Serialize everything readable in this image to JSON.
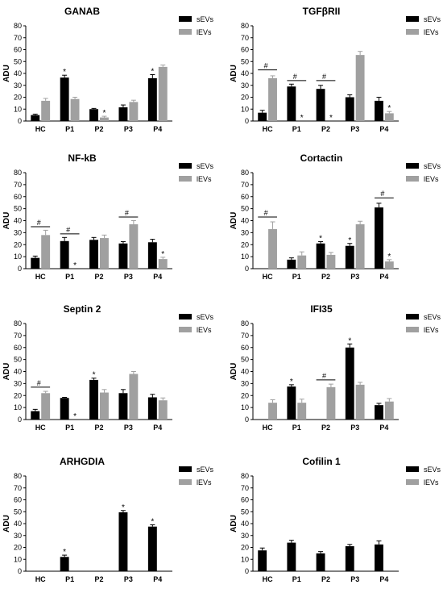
{
  "figure": {
    "colors": {
      "sEVs": "#000000",
      "lEVs": "#a0a0a0",
      "axis": "#000000"
    },
    "legend_labels": [
      "sEVs",
      "lEVs"
    ],
    "ylabel": "ADU",
    "categories": [
      "HC",
      "P1",
      "P2",
      "P3",
      "P4"
    ]
  },
  "chart_data": [
    {
      "type": "bar",
      "title": "GANAB",
      "ylabel": "ADU",
      "ylim": [
        0,
        80
      ],
      "yticks": [
        0,
        10,
        20,
        30,
        40,
        50,
        60,
        70,
        80
      ],
      "categories": [
        "HC",
        "P1",
        "P2",
        "P3",
        "P4"
      ],
      "legend": "top-right",
      "series": [
        {
          "name": "sEVs",
          "values": [
            5,
            36.5,
            10,
            11.5,
            36
          ],
          "errors": [
            0.8,
            2,
            0.6,
            2,
            3
          ]
        },
        {
          "name": "lEVs",
          "values": [
            17,
            18.5,
            3,
            16,
            45.5
          ],
          "errors": [
            2,
            1.5,
            1,
            1.5,
            1.5
          ]
        }
      ],
      "annotations": [
        {
          "category": "P1",
          "series": "sEVs",
          "text": "*"
        },
        {
          "category": "P2",
          "series": "lEVs",
          "text": "*"
        },
        {
          "category": "P4",
          "series": "sEVs",
          "text": "*"
        }
      ],
      "brackets": []
    },
    {
      "type": "bar",
      "title": "TGFβRII",
      "ylabel": "ADU",
      "ylim": [
        0,
        80
      ],
      "yticks": [
        0,
        10,
        20,
        30,
        40,
        50,
        60,
        70,
        80
      ],
      "categories": [
        "HC",
        "P1",
        "P2",
        "P3",
        "P4"
      ],
      "legend": "top-right",
      "series": [
        {
          "name": "sEVs",
          "values": [
            7,
            29,
            27,
            20,
            17
          ],
          "errors": [
            2,
            2,
            3,
            2,
            3
          ]
        },
        {
          "name": "lEVs",
          "values": [
            36,
            0,
            0,
            55.5,
            6.5
          ],
          "errors": [
            2,
            0,
            0,
            3,
            1.5
          ]
        }
      ],
      "annotations": [
        {
          "category": "P1",
          "series": "lEVs",
          "text": "*"
        },
        {
          "category": "P2",
          "series": "lEVs",
          "text": "*"
        },
        {
          "category": "P4",
          "series": "lEVs",
          "text": "*"
        }
      ],
      "brackets": [
        {
          "category": "HC",
          "y": 43,
          "text": "#"
        },
        {
          "category": "P1",
          "y": 34,
          "text": "#"
        },
        {
          "category": "P2",
          "y": 34,
          "text": "#"
        }
      ]
    },
    {
      "type": "bar",
      "title": "NF-kB",
      "ylabel": "ADU",
      "ylim": [
        0,
        80
      ],
      "yticks": [
        0,
        10,
        20,
        30,
        40,
        50,
        60,
        70,
        80
      ],
      "categories": [
        "HC",
        "P1",
        "P2",
        "P3",
        "P4"
      ],
      "legend": "top-right",
      "series": [
        {
          "name": "sEVs",
          "values": [
            9,
            23,
            24,
            21,
            22
          ],
          "errors": [
            1.5,
            3,
            2,
            1.5,
            2.5
          ]
        },
        {
          "name": "lEVs",
          "values": [
            28,
            0,
            25.5,
            37,
            8
          ],
          "errors": [
            4,
            0,
            2.5,
            3,
            1.5
          ]
        }
      ],
      "annotations": [
        {
          "category": "P1",
          "series": "lEVs",
          "text": "*"
        },
        {
          "category": "P4",
          "series": "lEVs",
          "text": "*"
        }
      ],
      "brackets": [
        {
          "category": "HC",
          "y": 35,
          "text": "#"
        },
        {
          "category": "P1",
          "y": 29,
          "text": "#"
        },
        {
          "category": "P3",
          "y": 43,
          "text": "#"
        }
      ]
    },
    {
      "type": "bar",
      "title": "Cortactin",
      "ylabel": "ADU",
      "ylim": [
        0,
        80
      ],
      "yticks": [
        0,
        10,
        20,
        30,
        40,
        50,
        60,
        70,
        80
      ],
      "categories": [
        "HC",
        "P1",
        "P2",
        "P3",
        "P4"
      ],
      "legend": "top-right",
      "series": [
        {
          "name": "sEVs",
          "values": [
            0,
            7.5,
            21,
            19,
            51
          ],
          "errors": [
            0,
            1.5,
            1.5,
            2,
            3.5
          ]
        },
        {
          "name": "lEVs",
          "values": [
            33,
            11,
            11.5,
            37,
            6
          ],
          "errors": [
            6,
            3,
            2,
            2.5,
            1.5
          ]
        }
      ],
      "annotations": [
        {
          "category": "P2",
          "series": "sEVs",
          "text": "*"
        },
        {
          "category": "P3",
          "series": "sEVs",
          "text": "*"
        },
        {
          "category": "P4",
          "series": "lEVs",
          "text": "*"
        }
      ],
      "brackets": [
        {
          "category": "HC",
          "y": 43,
          "text": "#"
        },
        {
          "category": "P4",
          "y": 59,
          "text": "#"
        }
      ]
    },
    {
      "type": "bar",
      "title": "Septin 2",
      "ylabel": "ADU",
      "ylim": [
        0,
        80
      ],
      "yticks": [
        0,
        10,
        20,
        30,
        40,
        50,
        60,
        70,
        80
      ],
      "categories": [
        "HC",
        "P1",
        "P2",
        "P3",
        "P4"
      ],
      "legend": "top-right",
      "series": [
        {
          "name": "sEVs",
          "values": [
            7,
            18,
            33,
            22,
            18.5
          ],
          "errors": [
            1.5,
            0.5,
            1.5,
            3,
            2.5
          ]
        },
        {
          "name": "lEVs",
          "values": [
            22,
            0,
            22.5,
            38,
            16
          ],
          "errors": [
            1.5,
            0,
            2.5,
            2,
            2
          ]
        }
      ],
      "annotations": [
        {
          "category": "P1",
          "series": "lEVs",
          "text": "*"
        },
        {
          "category": "P2",
          "series": "sEVs",
          "text": "*"
        }
      ],
      "brackets": [
        {
          "category": "HC",
          "y": 27,
          "text": "#"
        }
      ]
    },
    {
      "type": "bar",
      "title": "IFI35",
      "ylabel": "ADU",
      "ylim": [
        0,
        80
      ],
      "yticks": [
        0,
        10,
        20,
        30,
        40,
        50,
        60,
        70,
        80
      ],
      "categories": [
        "HC",
        "P1",
        "P2",
        "P3",
        "P4"
      ],
      "legend": "top-right",
      "series": [
        {
          "name": "sEVs",
          "values": [
            0,
            27.5,
            0,
            60,
            12
          ],
          "errors": [
            0,
            1.5,
            0,
            3,
            1.5
          ]
        },
        {
          "name": "lEVs",
          "values": [
            14,
            14,
            27,
            29,
            15
          ],
          "errors": [
            2.5,
            3,
            2.5,
            2,
            2.5
          ]
        }
      ],
      "annotations": [
        {
          "category": "P1",
          "series": "sEVs",
          "text": "*"
        },
        {
          "category": "P3",
          "series": "sEVs",
          "text": "*"
        }
      ],
      "brackets": [
        {
          "category": "P2",
          "y": 33,
          "text": "#"
        }
      ]
    },
    {
      "type": "bar",
      "title": "ARHGDIA",
      "ylabel": "ADU",
      "ylim": [
        0,
        80
      ],
      "yticks": [
        0,
        10,
        20,
        30,
        40,
        50,
        60,
        70,
        80
      ],
      "categories": [
        "HC",
        "P1",
        "P2",
        "P3",
        "P4"
      ],
      "legend": "top-right",
      "series": [
        {
          "name": "sEVs",
          "values": [
            0,
            12,
            0,
            49.5,
            37.5
          ],
          "errors": [
            0,
            1.5,
            0,
            1.5,
            1.5
          ]
        },
        {
          "name": "lEVs",
          "values": [
            0,
            0,
            0,
            0,
            0
          ],
          "errors": [
            0,
            0,
            0,
            0,
            0
          ]
        }
      ],
      "annotations": [
        {
          "category": "P1",
          "series": "sEVs",
          "text": "*"
        },
        {
          "category": "P3",
          "series": "sEVs",
          "text": "*"
        },
        {
          "category": "P4",
          "series": "sEVs",
          "text": "*"
        }
      ],
      "brackets": []
    },
    {
      "type": "bar",
      "title": "Cofilin 1",
      "ylabel": "ADU",
      "ylim": [
        0,
        80
      ],
      "yticks": [
        0,
        10,
        20,
        30,
        40,
        50,
        60,
        70,
        80
      ],
      "categories": [
        "HC",
        "P1",
        "P2",
        "P3",
        "P4"
      ],
      "legend": "top-right",
      "series": [
        {
          "name": "sEVs",
          "values": [
            17.5,
            24,
            15,
            21,
            22.5
          ],
          "errors": [
            2,
            2,
            1.5,
            1.5,
            3
          ]
        },
        {
          "name": "lEVs",
          "values": [
            0,
            0,
            0,
            0,
            0
          ],
          "errors": [
            0,
            0,
            0,
            0,
            0
          ]
        }
      ],
      "annotations": [],
      "brackets": []
    }
  ]
}
